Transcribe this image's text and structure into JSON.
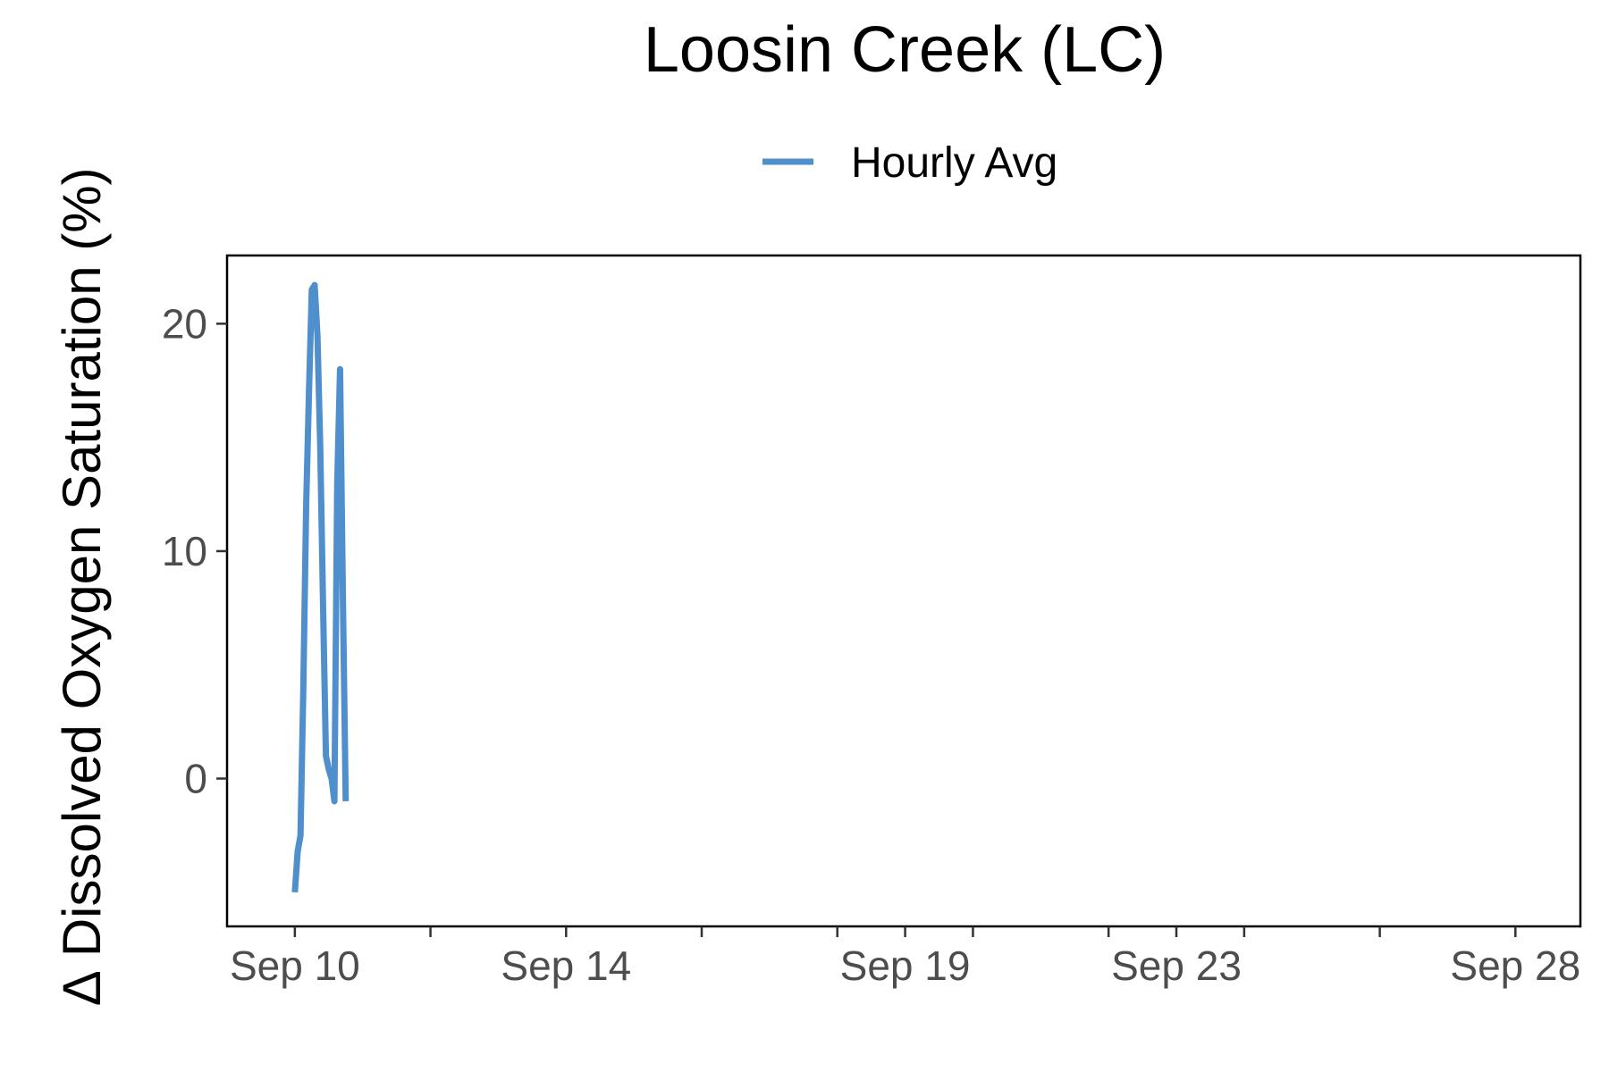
{
  "chart_data": {
    "type": "line",
    "title": "Loosin Creek (LC)",
    "xlabel": "",
    "ylabel": "∆ Dissolved Oxygen Saturation (%)",
    "legend": {
      "position": "top",
      "entries": [
        "Hourly Avg"
      ]
    },
    "grid": false,
    "xlim": [
      "2023-09-09T00:00",
      "2023-09-28T23:00"
    ],
    "ylim": [
      -6.5,
      23
    ],
    "x_ticks": [
      {
        "label": "Sep 10",
        "value": "2023-09-10T00:00"
      },
      {
        "label": "Sep 14",
        "value": "2023-09-14T00:00"
      },
      {
        "label": "Sep 19",
        "value": "2023-09-19T00:00"
      },
      {
        "label": "Sep 23",
        "value": "2023-09-23T00:00"
      },
      {
        "label": "Sep 28",
        "value": "2023-09-28T00:00"
      }
    ],
    "y_ticks": [
      0,
      10,
      20
    ],
    "colors": {
      "series": "#4f8fcd"
    },
    "series": [
      {
        "name": "Hourly Avg",
        "x": [
          "2023-09-10T00:00",
          "2023-09-10T01:00",
          "2023-09-10T02:00",
          "2023-09-10T03:00",
          "2023-09-10T04:00",
          "2023-09-10T05:00",
          "2023-09-10T06:00",
          "2023-09-10T07:00",
          "2023-09-10T08:00",
          "2023-09-10T09:00",
          "2023-09-10T10:00",
          "2023-09-10T11:00",
          "2023-09-10T12:00",
          "2023-09-10T13:00",
          "2023-09-10T14:00",
          "2023-09-10T15:00",
          "2023-09-10T16:00",
          "2023-09-10T17:00",
          "2023-09-10T18:00"
        ],
        "values": [
          -5.0,
          -3.2,
          -2.5,
          4.0,
          12.0,
          17.0,
          21.5,
          21.7,
          19.5,
          14.5,
          7.5,
          1.0,
          0.4,
          0.0,
          -1.0,
          13.0,
          18.0,
          8.0,
          -1.0
        ]
      }
    ]
  }
}
